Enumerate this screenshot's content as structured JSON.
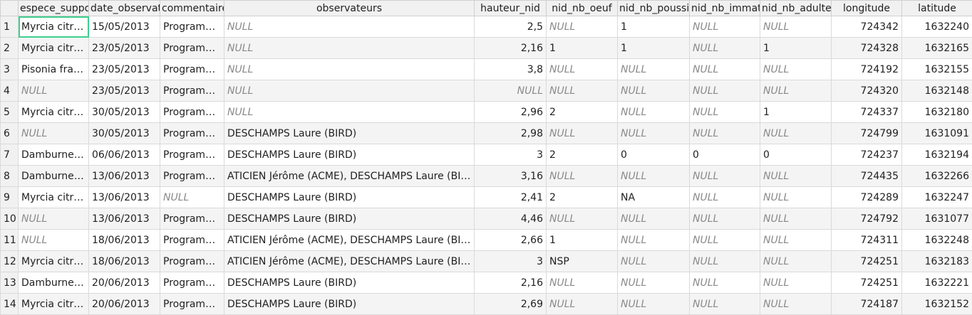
{
  "columns": [
    {
      "label": "espece_support",
      "align": "left"
    },
    {
      "label": "date_observation",
      "align": "left"
    },
    {
      "label": "commentaires",
      "align": "left"
    },
    {
      "label": "observateurs",
      "align": "left"
    },
    {
      "label": "hauteur_nid",
      "align": "right"
    },
    {
      "label": "nid_nb_oeuf",
      "align": "left"
    },
    {
      "label": "nid_nb_poussin",
      "align": "left"
    },
    {
      "label": "nid_nb_immature",
      "align": "left"
    },
    {
      "label": "nid_nb_adulte",
      "align": "left"
    },
    {
      "label": "longitude",
      "align": "right"
    },
    {
      "label": "latitude",
      "align": "right"
    }
  ],
  "null_text": "NULL",
  "selected_cell": {
    "row": 0,
    "col": 0
  },
  "rows": [
    {
      "num": "1",
      "cells": [
        "Myrcia citri…",
        "15/05/2013",
        "Program…",
        null,
        "2,5",
        null,
        "1",
        null,
        null,
        "724342",
        "1632240"
      ]
    },
    {
      "num": "2",
      "cells": [
        "Myrcia citri…",
        "23/05/2013",
        "Program…",
        null,
        "2,16",
        "1",
        "1",
        null,
        "1",
        "724328",
        "1632165"
      ]
    },
    {
      "num": "3",
      "cells": [
        "Pisonia fra…",
        "23/05/2013",
        "Program…",
        null,
        "3,8",
        null,
        null,
        null,
        null,
        "724192",
        "1632155"
      ]
    },
    {
      "num": "4",
      "cells": [
        null,
        "23/05/2013",
        "Program…",
        null,
        null,
        null,
        null,
        null,
        null,
        "724320",
        "1632148"
      ]
    },
    {
      "num": "5",
      "cells": [
        "Myrcia citri…",
        "30/05/2013",
        "Program…",
        null,
        "2,96",
        "2",
        null,
        null,
        "1",
        "724337",
        "1632180"
      ]
    },
    {
      "num": "6",
      "cells": [
        null,
        "30/05/2013",
        "Program…",
        "DESCHAMPS Laure (BIRD)",
        "2,98",
        null,
        null,
        null,
        null,
        "724799",
        "1631091"
      ]
    },
    {
      "num": "7",
      "cells": [
        "Damburne…",
        "06/06/2013",
        "Program…",
        "DESCHAMPS Laure (BIRD)",
        "3",
        "2",
        "0",
        "0",
        "0",
        "724237",
        "1632194"
      ]
    },
    {
      "num": "8",
      "cells": [
        "Damburne…",
        "13/06/2013",
        "Program…",
        "ATICIEN Jérôme (ACME), DESCHAMPS Laure (BI…",
        "3,16",
        null,
        null,
        null,
        null,
        "724435",
        "1632266"
      ]
    },
    {
      "num": "9",
      "cells": [
        "Myrcia citri…",
        "13/06/2013",
        null,
        "DESCHAMPS Laure (BIRD)",
        "2,41",
        "2",
        "NA",
        null,
        null,
        "724289",
        "1632247"
      ]
    },
    {
      "num": "10",
      "cells": [
        null,
        "13/06/2013",
        "Program…",
        "DESCHAMPS Laure (BIRD)",
        "4,46",
        null,
        null,
        null,
        null,
        "724792",
        "1631077"
      ]
    },
    {
      "num": "11",
      "cells": [
        null,
        "18/06/2013",
        "Program…",
        "ATICIEN Jérôme (ACME), DESCHAMPS Laure (BI…",
        "2,66",
        "1",
        null,
        null,
        null,
        "724311",
        "1632248"
      ]
    },
    {
      "num": "12",
      "cells": [
        "Myrcia citri…",
        "18/06/2013",
        "Program…",
        "ATICIEN Jérôme (ACME), DESCHAMPS Laure (BI…",
        "3",
        "NSP",
        null,
        null,
        null,
        "724251",
        "1632183"
      ]
    },
    {
      "num": "13",
      "cells": [
        "Damburne…",
        "20/06/2013",
        "Program…",
        "DESCHAMPS Laure (BIRD)",
        "2,16",
        null,
        null,
        null,
        null,
        "724251",
        "1632221"
      ]
    },
    {
      "num": "14",
      "cells": [
        "Myrcia citri…",
        "20/06/2013",
        "Program…",
        "DESCHAMPS Laure (BIRD)",
        "2,69",
        null,
        null,
        null,
        null,
        "724187",
        "1632152"
      ]
    }
  ]
}
